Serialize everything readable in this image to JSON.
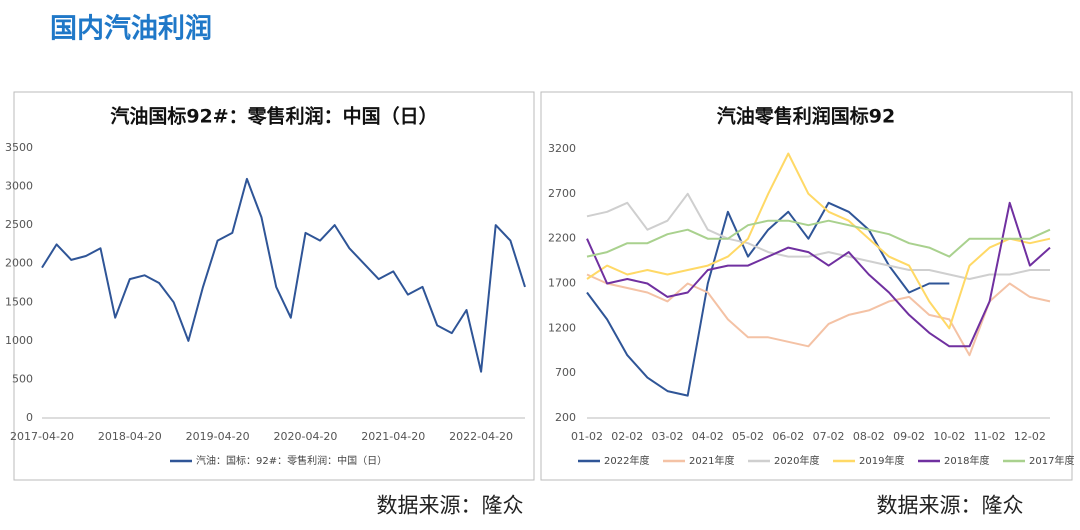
{
  "header": {
    "title": "国内汽油利润"
  },
  "sources": [
    "数据来源：隆众",
    "数据来源：隆众"
  ],
  "chart_data": [
    {
      "type": "line",
      "title": "汽油国标92#：零售利润：中国（日）",
      "categories": [
        "2017-04-20",
        null,
        null,
        null,
        null,
        null,
        "2018-04-20",
        null,
        null,
        null,
        null,
        null,
        "2019-04-20",
        null,
        null,
        null,
        null,
        null,
        "2020-04-20",
        null,
        null,
        null,
        null,
        null,
        "2021-04-20",
        null,
        null,
        null,
        null,
        null,
        "2022-04-20",
        null,
        null,
        null
      ],
      "series": [
        {
          "name": "汽油：国标：92#：零售利润：中国（日）",
          "color": "#2f5597",
          "values": [
            1950,
            2250,
            2050,
            2100,
            2200,
            1300,
            1800,
            1850,
            1750,
            1500,
            1000,
            1700,
            2300,
            2400,
            3100,
            2600,
            1700,
            1300,
            2400,
            2300,
            2500,
            2200,
            2000,
            1800,
            1900,
            1600,
            1700,
            1200,
            1100,
            1400,
            600,
            2500,
            2300,
            1700
          ]
        }
      ],
      "ylim": [
        0,
        3500
      ],
      "yticks": [
        0,
        500,
        1000,
        1500,
        2000,
        2500,
        3000,
        3500
      ],
      "grid": false
    },
    {
      "type": "line",
      "title": "汽油零售利润国标92",
      "categories": [
        "01-02",
        null,
        "02-02",
        null,
        "03-02",
        null,
        "04-02",
        null,
        "05-02",
        null,
        "06-02",
        null,
        "07-02",
        null,
        "08-02",
        null,
        "09-02",
        null,
        "10-02",
        null,
        "11-02",
        null,
        "12-02",
        null
      ],
      "series": [
        {
          "name": "2022年度",
          "color": "#2f5597",
          "values": [
            1600,
            1300,
            900,
            650,
            500,
            450,
            1700,
            2500,
            2000,
            2300,
            2500,
            2200,
            2600,
            2500,
            2300,
            1900,
            1600,
            1700,
            1700,
            null,
            null,
            null,
            null,
            null
          ]
        },
        {
          "name": "2021年度",
          "color": "#f4c2a5",
          "values": [
            1800,
            1700,
            1650,
            1600,
            1500,
            1700,
            1600,
            1300,
            1100,
            1100,
            1050,
            1000,
            1250,
            1350,
            1400,
            1500,
            1550,
            1350,
            1300,
            900,
            1500,
            1700,
            1550,
            1500
          ]
        },
        {
          "name": "2020年度",
          "color": "#cfcfcf",
          "values": [
            2450,
            2500,
            2600,
            2300,
            2400,
            2700,
            2300,
            2200,
            2150,
            2050,
            2000,
            2000,
            2050,
            2000,
            1950,
            1900,
            1850,
            1850,
            1800,
            1750,
            1800,
            1800,
            1850,
            1850
          ]
        },
        {
          "name": "2019年度",
          "color": "#ffd966",
          "values": [
            1750,
            1900,
            1800,
            1850,
            1800,
            1850,
            1900,
            2000,
            2200,
            2700,
            3150,
            2700,
            2500,
            2400,
            2200,
            2000,
            1900,
            1500,
            1200,
            1900,
            2100,
            2200,
            2150,
            2200
          ]
        },
        {
          "name": "2018年度",
          "color": "#7030a0",
          "values": [
            2200,
            1700,
            1750,
            1700,
            1550,
            1600,
            1850,
            1900,
            1900,
            2000,
            2100,
            2050,
            1900,
            2050,
            1800,
            1600,
            1350,
            1150,
            1000,
            1000,
            1500,
            2600,
            1900,
            2100
          ]
        },
        {
          "name": "2017年度",
          "color": "#a9d18e",
          "values": [
            2000,
            2050,
            2150,
            2150,
            2250,
            2300,
            2200,
            2200,
            2350,
            2400,
            2400,
            2350,
            2400,
            2350,
            2300,
            2250,
            2150,
            2100,
            2000,
            2200,
            2200,
            2200,
            2200,
            2300
          ]
        }
      ],
      "ylim": [
        200,
        3200
      ],
      "yticks": [
        200,
        700,
        1200,
        1700,
        2200,
        2700,
        3200
      ],
      "grid": false
    }
  ]
}
